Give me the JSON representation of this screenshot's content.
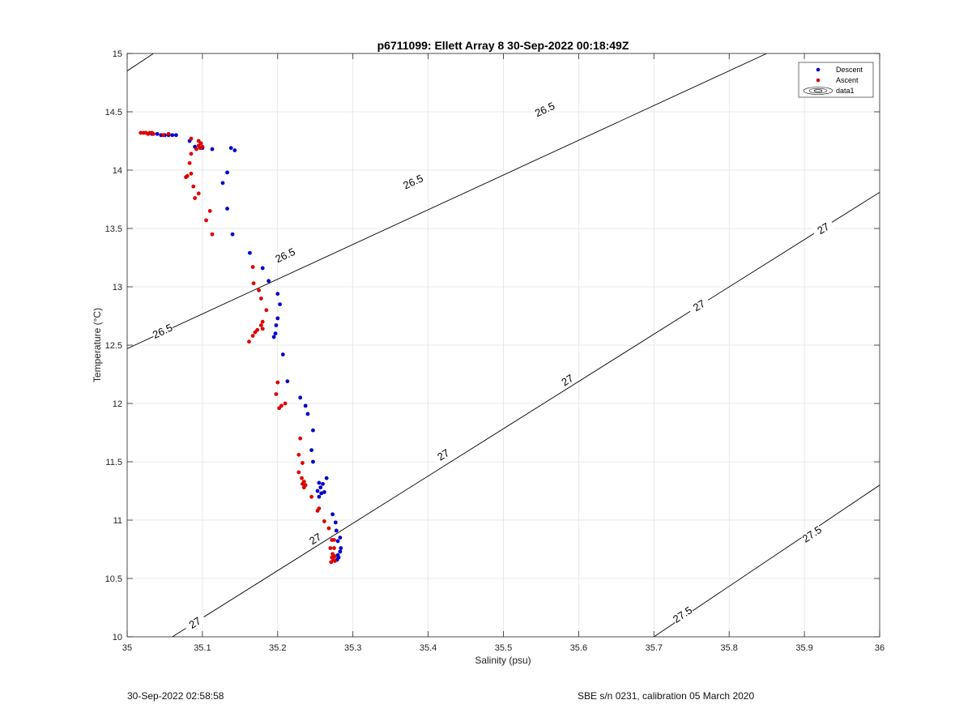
{
  "chart_data": {
    "type": "scatter",
    "title": "p6711099: Ellett Array 8 30-Sep-2022 00:18:49Z",
    "xlabel": "Salinity (psu)",
    "ylabel": "Temperature (°C)",
    "xlim": [
      35,
      36
    ],
    "ylim": [
      10,
      15
    ],
    "xticks": [
      "35",
      "35.1",
      "35.2",
      "35.3",
      "35.4",
      "35.5",
      "35.6",
      "35.7",
      "35.8",
      "35.9",
      "36"
    ],
    "yticks": [
      "10",
      "10.5",
      "11",
      "11.5",
      "12",
      "12.5",
      "13",
      "13.5",
      "14",
      "14.5",
      "15"
    ],
    "grid": true,
    "legend_position": "top-right",
    "legend": [
      "Descent",
      "Ascent",
      "data1"
    ],
    "series": [
      {
        "name": "Descent",
        "color": "#0000cc",
        "points": [
          [
            35.033,
            14.31
          ],
          [
            35.04,
            14.31
          ],
          [
            35.045,
            14.3
          ],
          [
            35.05,
            14.3
          ],
          [
            35.055,
            14.3
          ],
          [
            35.06,
            14.3
          ],
          [
            35.065,
            14.3
          ],
          [
            35.083,
            14.25
          ],
          [
            35.09,
            14.2
          ],
          [
            35.1,
            14.19
          ],
          [
            35.113,
            14.18
          ],
          [
            35.138,
            14.19
          ],
          [
            35.143,
            14.17
          ],
          [
            35.133,
            13.98
          ],
          [
            35.127,
            13.89
          ],
          [
            35.133,
            13.67
          ],
          [
            35.14,
            13.45
          ],
          [
            35.163,
            13.29
          ],
          [
            35.18,
            13.16
          ],
          [
            35.188,
            13.05
          ],
          [
            35.2,
            12.94
          ],
          [
            35.203,
            12.85
          ],
          [
            35.2,
            12.73
          ],
          [
            35.198,
            12.67
          ],
          [
            35.197,
            12.6
          ],
          [
            35.195,
            12.57
          ],
          [
            35.207,
            12.42
          ],
          [
            35.213,
            12.19
          ],
          [
            35.23,
            12.05
          ],
          [
            35.237,
            11.98
          ],
          [
            35.24,
            11.91
          ],
          [
            35.247,
            11.77
          ],
          [
            35.245,
            11.6
          ],
          [
            35.247,
            11.5
          ],
          [
            35.265,
            11.36
          ],
          [
            35.255,
            11.32
          ],
          [
            35.26,
            11.31
          ],
          [
            35.257,
            11.28
          ],
          [
            35.253,
            11.25
          ],
          [
            35.258,
            11.23
          ],
          [
            35.255,
            11.2
          ],
          [
            35.262,
            11.24
          ],
          [
            35.273,
            11.05
          ],
          [
            35.277,
            10.98
          ],
          [
            35.278,
            10.91
          ],
          [
            35.283,
            10.85
          ],
          [
            35.28,
            10.82
          ],
          [
            35.284,
            10.76
          ],
          [
            35.283,
            10.73
          ],
          [
            35.28,
            10.7
          ],
          [
            35.281,
            10.68
          ],
          [
            35.279,
            10.66
          ]
        ]
      },
      {
        "name": "Ascent",
        "color": "#dd0000",
        "points": [
          [
            35.018,
            14.32
          ],
          [
            35.022,
            14.32
          ],
          [
            35.025,
            14.32
          ],
          [
            35.028,
            14.31
          ],
          [
            35.03,
            14.32
          ],
          [
            35.033,
            14.32
          ],
          [
            35.035,
            14.31
          ],
          [
            35.048,
            14.3
          ],
          [
            35.055,
            14.31
          ],
          [
            35.085,
            14.27
          ],
          [
            35.095,
            14.25
          ],
          [
            35.098,
            14.23
          ],
          [
            35.095,
            14.21
          ],
          [
            35.1,
            14.2
          ],
          [
            35.097,
            14.19
          ],
          [
            35.092,
            14.18
          ],
          [
            35.085,
            14.14
          ],
          [
            35.083,
            14.06
          ],
          [
            35.085,
            13.97
          ],
          [
            35.08,
            13.95
          ],
          [
            35.078,
            13.94
          ],
          [
            35.088,
            13.86
          ],
          [
            35.095,
            13.8
          ],
          [
            35.09,
            13.76
          ],
          [
            35.11,
            13.65
          ],
          [
            35.105,
            13.57
          ],
          [
            35.113,
            13.45
          ],
          [
            35.167,
            13.17
          ],
          [
            35.168,
            13.03
          ],
          [
            35.175,
            12.97
          ],
          [
            35.178,
            12.9
          ],
          [
            35.185,
            12.8
          ],
          [
            35.18,
            12.7
          ],
          [
            35.178,
            12.67
          ],
          [
            35.18,
            12.64
          ],
          [
            35.173,
            12.63
          ],
          [
            35.17,
            12.61
          ],
          [
            35.167,
            12.58
          ],
          [
            35.162,
            12.53
          ],
          [
            35.2,
            12.18
          ],
          [
            35.198,
            12.08
          ],
          [
            35.21,
            12.0
          ],
          [
            35.205,
            11.98
          ],
          [
            35.202,
            11.96
          ],
          [
            35.23,
            11.7
          ],
          [
            35.228,
            11.56
          ],
          [
            35.233,
            11.49
          ],
          [
            35.228,
            11.41
          ],
          [
            35.232,
            11.36
          ],
          [
            35.235,
            11.33
          ],
          [
            35.233,
            11.31
          ],
          [
            35.237,
            11.3
          ],
          [
            35.235,
            11.28
          ],
          [
            35.245,
            11.2
          ],
          [
            35.255,
            11.1
          ],
          [
            35.253,
            11.08
          ],
          [
            35.262,
            10.99
          ],
          [
            35.268,
            10.93
          ],
          [
            35.272,
            10.83
          ],
          [
            35.275,
            10.83
          ],
          [
            35.27,
            10.76
          ],
          [
            35.275,
            10.76
          ],
          [
            35.273,
            10.71
          ],
          [
            35.276,
            10.69
          ],
          [
            35.272,
            10.68
          ],
          [
            35.274,
            10.66
          ],
          [
            35.271,
            10.64
          ],
          [
            35.276,
            10.65
          ]
        ]
      }
    ],
    "contours": [
      {
        "level": "26.5",
        "p1": [
          35.0,
          12.47
        ],
        "p2": [
          35.85,
          15.0
        ],
        "label_positions": [
          [
            35.047,
            12.62
          ],
          [
            35.21,
            13.27
          ],
          [
            35.38,
            13.9
          ],
          [
            35.555,
            14.52
          ]
        ],
        "extra_segment": {
          "p1": [
            35.0,
            14.85
          ],
          "p2": [
            35.035,
            15.0
          ]
        }
      },
      {
        "level": "27",
        "p1": [
          35.06,
          10.0
        ],
        "p2": [
          36.0,
          13.81
        ],
        "label_positions": [
          [
            35.09,
            10.12
          ],
          [
            35.25,
            10.84
          ],
          [
            35.42,
            11.56
          ],
          [
            35.585,
            12.2
          ],
          [
            35.76,
            12.84
          ],
          [
            35.925,
            13.5
          ]
        ]
      },
      {
        "level": "27.5",
        "p1": [
          35.7,
          10.0
        ],
        "p2": [
          36.0,
          11.3
        ],
        "label_positions": [
          [
            35.738,
            10.19
          ],
          [
            35.91,
            10.88
          ]
        ]
      }
    ]
  },
  "footer": {
    "left": "30-Sep-2022 02:58:58",
    "right": "SBE s/n 0231, calibration 05 March 2020"
  }
}
